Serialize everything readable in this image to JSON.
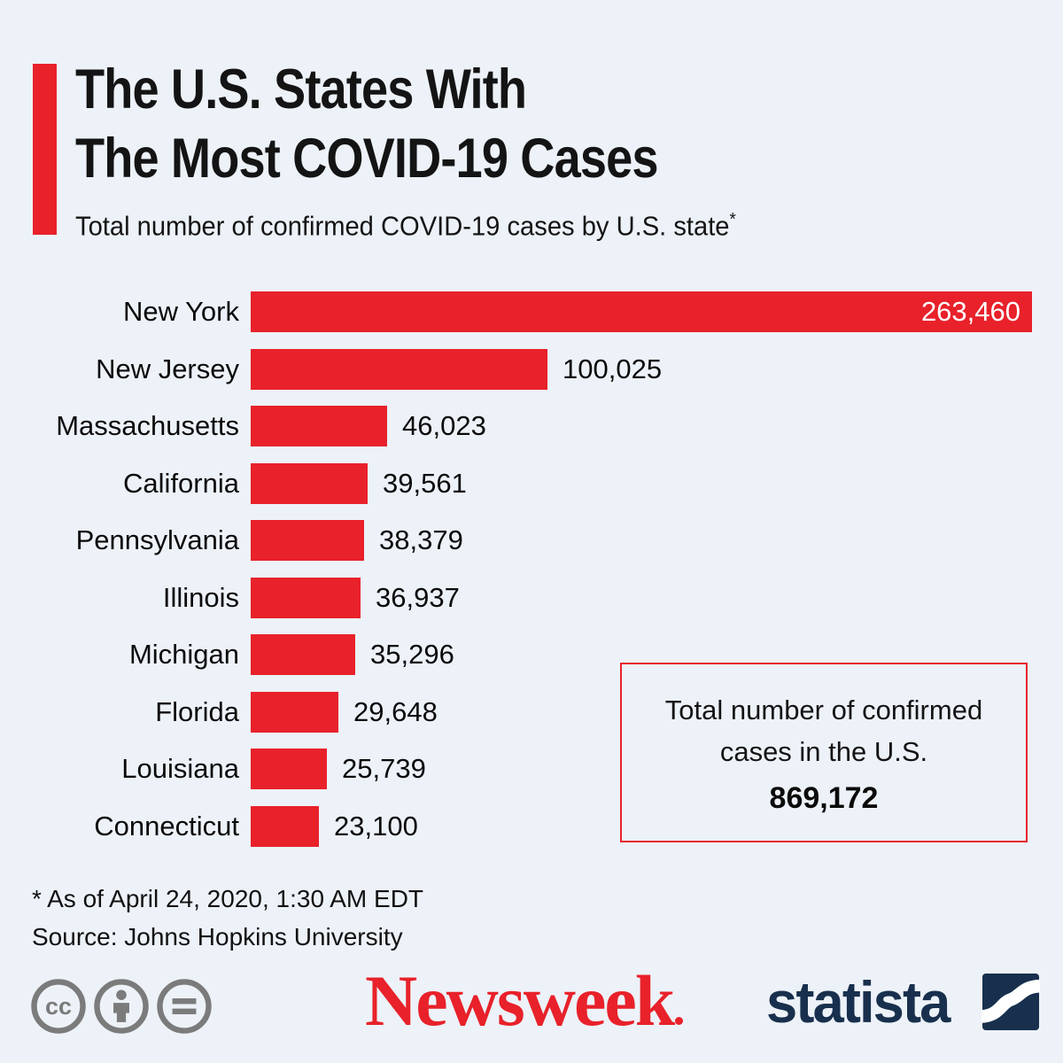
{
  "page": {
    "colors": {
      "background": "#edf2f8",
      "red": "#e8212a",
      "navy": "#18304d",
      "icon_gray": "#7b7b7b",
      "text_dark": "#141414",
      "bar_value_inside": "#ffffff"
    }
  },
  "header": {
    "title_line1": "The U.S. States With",
    "title_line2": "The Most COVID-19 Cases",
    "subtitle": "Total number of confirmed COVID-19 cases by U.S. state",
    "subtitle_marker": "*"
  },
  "chart_data": {
    "type": "bar",
    "orientation": "horizontal",
    "title": "The U.S. States With The Most COVID-19 Cases",
    "subtitle": "Total number of confirmed COVID-19 cases by U.S. state*",
    "categories": [
      "New York",
      "New Jersey",
      "Massachusetts",
      "California",
      "Pennsylvania",
      "Illinois",
      "Michigan",
      "Florida",
      "Louisiana",
      "Connecticut"
    ],
    "values": [
      263460,
      100025,
      46023,
      39561,
      38379,
      36937,
      35296,
      29648,
      25739,
      23100
    ],
    "value_labels": [
      "263,460",
      "100,025",
      "46,023",
      "39,561",
      "38,379",
      "36,937",
      "35,296",
      "29,648",
      "25,739",
      "23,100"
    ],
    "bar_color": "#e8212a",
    "xlim": [
      0,
      263460
    ],
    "grid": false,
    "legend": false,
    "first_bar_value_inside": true,
    "annotation_total": "Total number of confirmed cases in the U.S. 869,172"
  },
  "total_box": {
    "line1": "Total number of confirmed",
    "line2": "cases in the U.S.",
    "value": "869,172"
  },
  "footnotes": {
    "line1": "* As of April 24, 2020, 1:30 AM EDT",
    "line2": "Source: Johns Hopkins University"
  },
  "footer": {
    "cc_icons": [
      "cc-icon",
      "attribution-person-icon",
      "equals-icon"
    ],
    "newsweek": "Newsweek",
    "statista": "statista"
  }
}
